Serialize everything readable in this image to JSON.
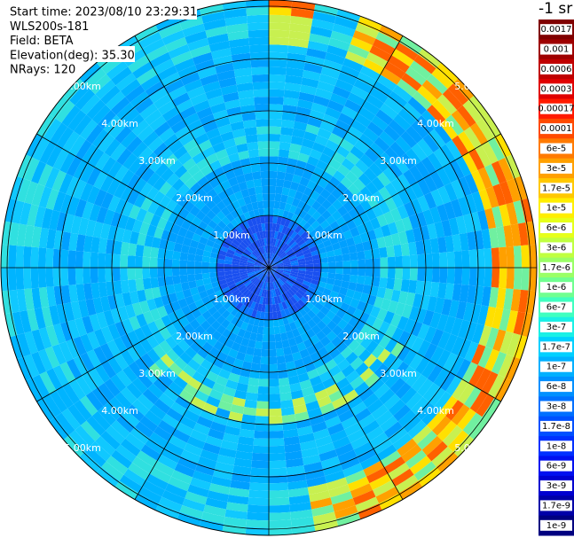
{
  "chart_data": {
    "type": "ppi",
    "info": [
      "Start time: 2023/08/10 23:29:31",
      "WLS200s-181",
      "Field: BETA",
      "Elevation(deg): 35.30",
      "NRays: 120"
    ],
    "ring_labels": [
      "1.00km",
      "2.00km",
      "3.00km",
      "4.00km",
      "5.00km"
    ],
    "colorbar_unit": "-1 sr",
    "colorbar": [
      {
        "label": "0.0017",
        "color": "#800000"
      },
      {
        "label": "0.001",
        "color": "#9e0000"
      },
      {
        "label": "0.0006",
        "color": "#c00000"
      },
      {
        "label": "0.0003",
        "color": "#e00000"
      },
      {
        "label": "0.00017",
        "color": "#ff1a00"
      },
      {
        "label": "0.0001",
        "color": "#ff4a00"
      },
      {
        "label": "6e-5",
        "color": "#ff7a00"
      },
      {
        "label": "3e-5",
        "color": "#ffa000"
      },
      {
        "label": "1.7e-5",
        "color": "#ffc800"
      },
      {
        "label": "1e-5",
        "color": "#ffee00"
      },
      {
        "label": "6e-6",
        "color": "#e6ff1a"
      },
      {
        "label": "3e-6",
        "color": "#c0ff40"
      },
      {
        "label": "1.7e-6",
        "color": "#9aff66"
      },
      {
        "label": "1e-6",
        "color": "#70ff90"
      },
      {
        "label": "6e-7",
        "color": "#40ffc0"
      },
      {
        "label": "3e-7",
        "color": "#1af0e6"
      },
      {
        "label": "1.7e-7",
        "color": "#00d0ff"
      },
      {
        "label": "1e-7",
        "color": "#00b0ff"
      },
      {
        "label": "6e-8",
        "color": "#0090ff"
      },
      {
        "label": "3e-8",
        "color": "#0070ff"
      },
      {
        "label": "1.7e-8",
        "color": "#0050ff"
      },
      {
        "label": "1e-8",
        "color": "#0030ff"
      },
      {
        "label": "6e-9",
        "color": "#0010f0"
      },
      {
        "label": "3e-9",
        "color": "#0000d0"
      },
      {
        "label": "1.7e-9",
        "color": "#0000a8"
      },
      {
        "label": "1e-9",
        "color": "#000080"
      }
    ]
  }
}
